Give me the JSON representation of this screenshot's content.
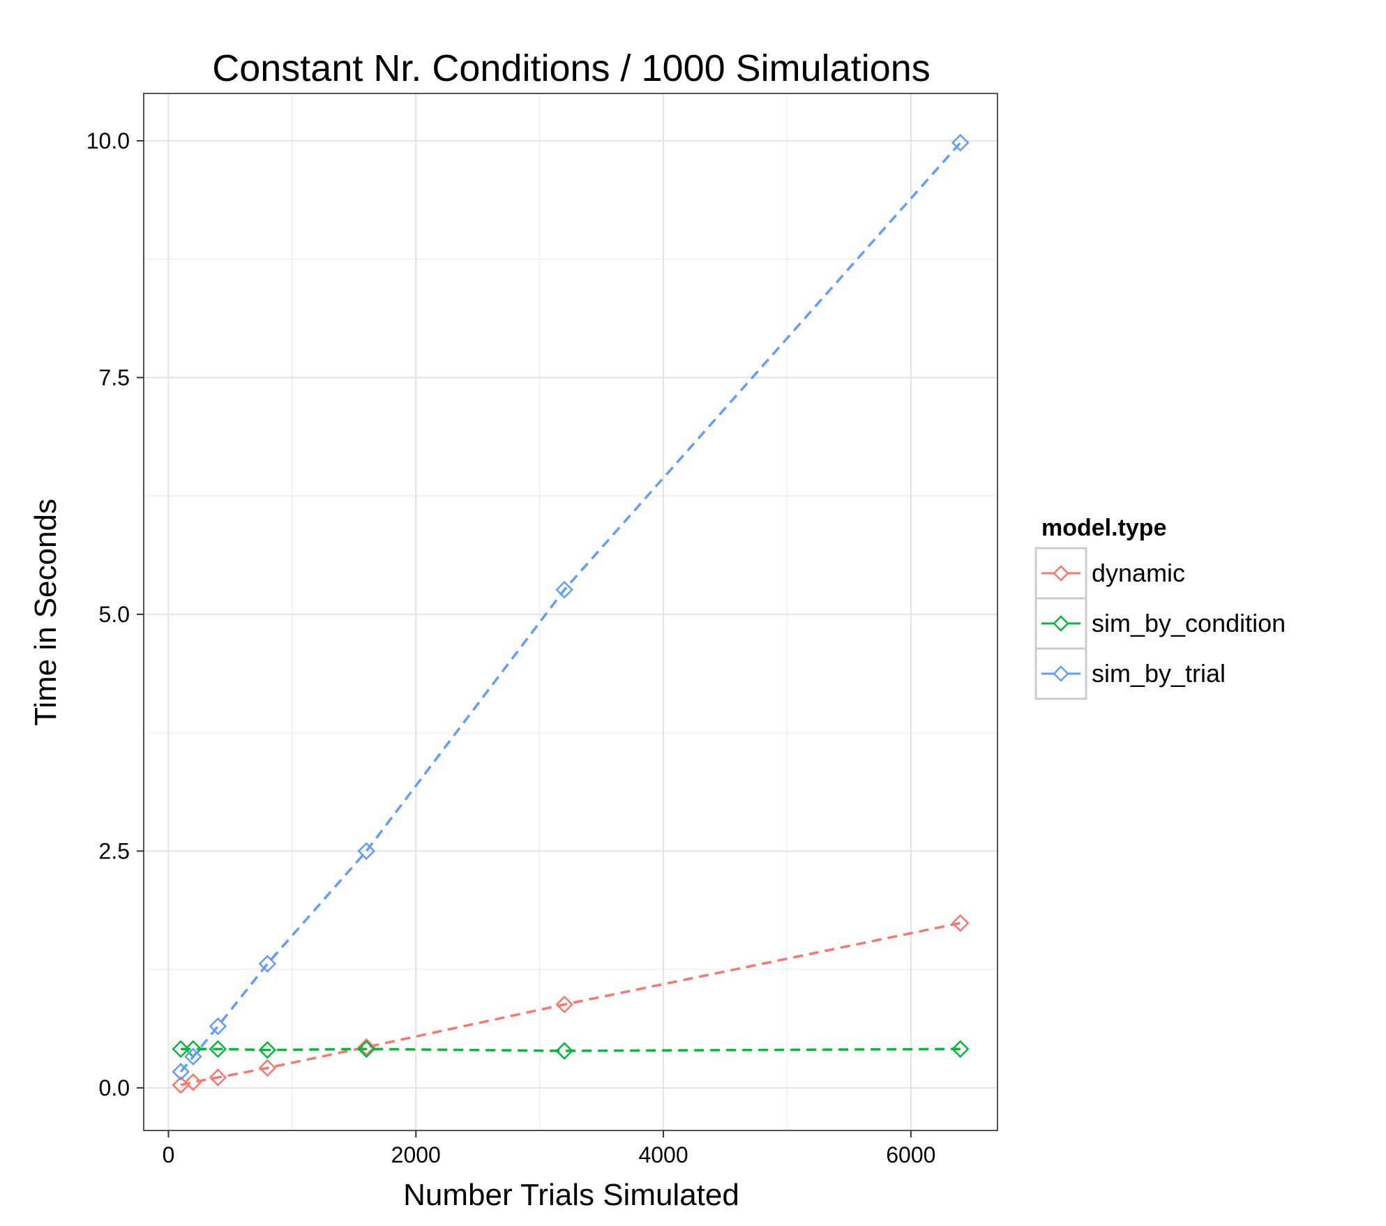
{
  "chart_data": {
    "type": "line",
    "title": "Constant Nr. Conditions / 1000 Simulations",
    "xlabel": "Number Trials Simulated",
    "ylabel": "Time in Seconds",
    "xlim": [
      -200,
      6700
    ],
    "ylim": [
      -0.45,
      10.5
    ],
    "x_ticks": [
      0,
      2000,
      4000,
      6000
    ],
    "x_tick_labels": [
      "0",
      "2000",
      "4000",
      "6000"
    ],
    "y_ticks": [
      0,
      2.5,
      5,
      7.5,
      10
    ],
    "y_tick_labels": [
      "0.0",
      "2.5",
      "5.0",
      "7.5",
      "10.0"
    ],
    "x_minor_ticks": [
      1000,
      3000,
      5000
    ],
    "y_minor_ticks": [
      1.25,
      3.75,
      6.25,
      8.75
    ],
    "grid": true,
    "line_style": "dashed",
    "marker": "open-diamond",
    "legend": {
      "title": "model.type",
      "position": "right"
    },
    "series": [
      {
        "name": "dynamic",
        "color": "#F8766D",
        "x": [
          100,
          200,
          400,
          800,
          1600,
          3200,
          6400
        ],
        "y": [
          0.03,
          0.06,
          0.11,
          0.21,
          0.43,
          0.88,
          1.74
        ]
      },
      {
        "name": "sim_by_condition",
        "color": "#00BA38",
        "x": [
          100,
          200,
          400,
          800,
          1600,
          3200,
          6400
        ],
        "y": [
          0.41,
          0.41,
          0.41,
          0.4,
          0.41,
          0.39,
          0.41
        ]
      },
      {
        "name": "sim_by_trial",
        "color": "#619CFF",
        "x": [
          100,
          200,
          400,
          800,
          1600,
          3200,
          6400
        ],
        "y": [
          0.17,
          0.33,
          0.65,
          1.31,
          2.5,
          5.26,
          9.98
        ]
      }
    ]
  }
}
